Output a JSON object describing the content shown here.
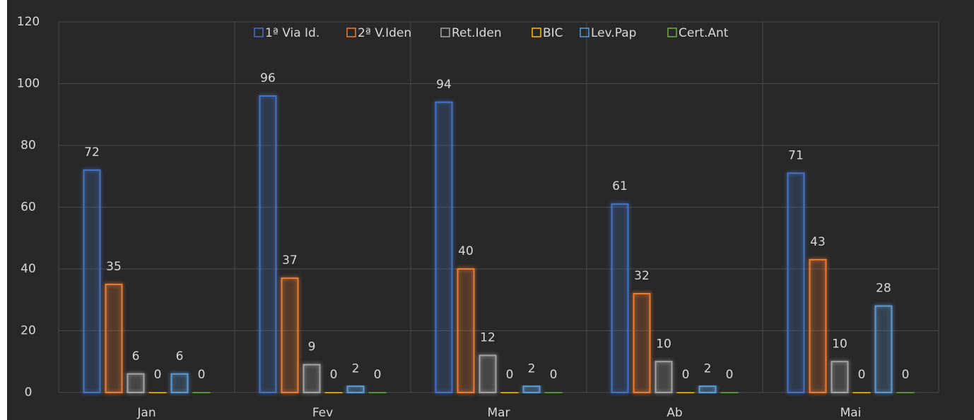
{
  "chart_data": {
    "type": "bar",
    "categories": [
      "Jan",
      "Fev",
      "Mar",
      "Ab",
      "Mai"
    ],
    "series": [
      {
        "name": "1ª Via Id.",
        "color": "#4472c4",
        "values": [
          72,
          96,
          94,
          61,
          71
        ]
      },
      {
        "name": "2ª V.Iden",
        "color": "#ed7d31",
        "values": [
          35,
          37,
          40,
          32,
          43
        ]
      },
      {
        "name": "Ret.Iden",
        "color": "#a5a5a5",
        "values": [
          6,
          9,
          12,
          10,
          10
        ]
      },
      {
        "name": "BIC",
        "color": "#ffc000",
        "values": [
          0,
          0,
          0,
          0,
          0
        ]
      },
      {
        "name": "Lev.Pap",
        "color": "#5b9bd5",
        "values": [
          6,
          2,
          2,
          2,
          28
        ]
      },
      {
        "name": "Cert.Ant",
        "color": "#70ad47",
        "values": [
          0,
          0,
          0,
          0,
          0
        ]
      }
    ],
    "ylim": [
      0,
      120
    ],
    "yticks": [
      0,
      20,
      40,
      60,
      80,
      100,
      120
    ],
    "grid": true,
    "legend": "top"
  }
}
